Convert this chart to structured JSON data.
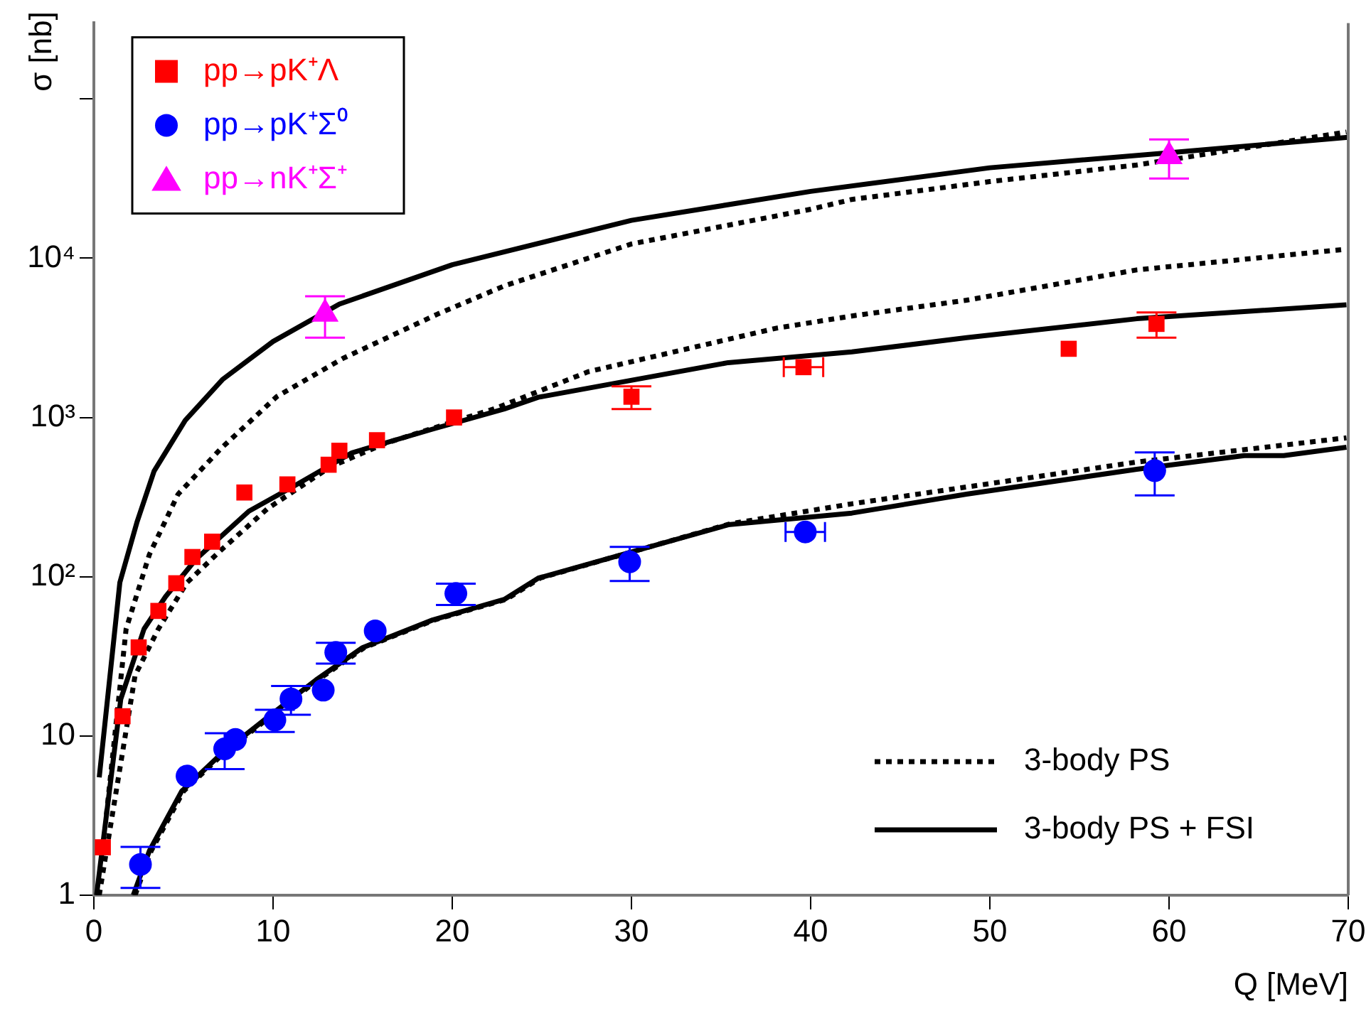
{
  "chart_data": {
    "type": "scatter",
    "xlabel": "Q [MeV]",
    "ylabel": "σ [nb]",
    "log": "y",
    "grid": false,
    "legend": "top left",
    "xlim": [
      0,
      70
    ],
    "xticks": [
      0,
      10,
      20,
      30,
      40,
      50,
      60,
      70
    ],
    "ylim": [
      1,
      300000
    ],
    "yticks": [
      1,
      10,
      {
        "value": 100,
        "label": "10²"
      },
      {
        "value": 1000,
        "label": "10³"
      },
      {
        "value": 10000,
        "label": "10⁴"
      },
      {
        "value": 100000,
        "label": null
      }
    ],
    "series": [
      {
        "name": "pp→pK⁺Λ",
        "color": "#ff0000",
        "marker": "square",
        "x": [
          0.5,
          1.6,
          2.5,
          3.6,
          4.6,
          5.5,
          6.6,
          8.4,
          10.8,
          13.1,
          13.7,
          15.8,
          20.1,
          30.0,
          39.6,
          54.4,
          59.3
        ],
        "values": [
          2.0,
          13.3,
          36,
          61,
          91,
          133,
          166,
          338,
          380,
          505,
          618,
          720,
          1000,
          1350,
          2070,
          2700,
          3870
        ],
        "errors": [
          null,
          null,
          null,
          null,
          null,
          null,
          null,
          null,
          null,
          null,
          null,
          null,
          null,
          220,
          null,
          null,
          700
        ],
        "xerrors": [
          null,
          null,
          null,
          null,
          null,
          null,
          null,
          null,
          null,
          null,
          null,
          null,
          null,
          null,
          1.1,
          null,
          null
        ]
      },
      {
        "name": "pp→pK⁺Σ⁰",
        "color": "#0000ff",
        "marker": "circle",
        "x": [
          2.6,
          5.2,
          7.3,
          7.9,
          10.1,
          11.0,
          12.8,
          13.5,
          15.7,
          20.2,
          29.9,
          39.7,
          59.2
        ],
        "values": [
          1.56,
          5.6,
          8.3,
          9.5,
          12.6,
          17.1,
          19.4,
          33.5,
          45.7,
          78.5,
          124,
          191,
          464
        ],
        "errors": [
          0.45,
          null,
          2.1,
          null,
          2,
          3.5,
          null,
          5,
          null,
          12,
          30,
          null,
          140
        ],
        "xerrors": [
          null,
          null,
          null,
          null,
          null,
          null,
          null,
          null,
          null,
          null,
          null,
          1.1,
          null
        ]
      },
      {
        "name": "pp→nK⁺Σ⁺",
        "color": "#ff00ff",
        "marker": "triangle",
        "x": [
          12.9,
          60.0
        ],
        "values": [
          4470,
          43700
        ],
        "errors": [
          1300,
          12000
        ]
      },
      {
        "type": "line",
        "name": "3-body PS",
        "color": "#000000",
        "line_style": "dotted",
        "x": [
          0.7,
          1.8,
          3.1,
          4.7,
          7.1,
          10.2,
          13.9,
          19.2,
          22.9,
          30,
          40,
          42.3,
          50,
          58.2,
          69.9
        ],
        "values": [
          3.2,
          47,
          138,
          330,
          640,
          1350,
          2350,
          4470,
          6700,
          12300,
          20300,
          23400,
          30300,
          38500,
          62000
        ]
      },
      {
        "type": "line",
        "name": "3-body PS + FSI",
        "color": "#000000",
        "line_style": "solid",
        "x": [
          0.3,
          1.45,
          2.4,
          3.36,
          5.1,
          7.2,
          10.0,
          13.7,
          20,
          30,
          40,
          50,
          60,
          70
        ],
        "values": [
          5.5,
          92,
          219,
          460,
          960,
          1740,
          3000,
          5150,
          9100,
          17300,
          26300,
          37000,
          46000,
          57500
        ]
      },
      {
        "type": "line",
        "color": "#000000",
        "line_style": "dotted",
        "x": [
          0.3,
          2.3,
          3.6,
          5.2,
          7.1,
          9.7,
          13.2,
          16.3,
          22.4,
          27.6,
          38.1,
          42.3,
          48.7,
          58.2,
          69.9
        ],
        "values": [
          1,
          24,
          47,
          92,
          147,
          268,
          490,
          690,
          1140,
          1940,
          3640,
          4340,
          5450,
          8450,
          11400
        ]
      },
      {
        "type": "line",
        "color": "#000000",
        "line_style": "solid",
        "x": [
          0.15,
          1.5,
          2.8,
          4.0,
          5.7,
          8.65,
          11.3,
          14.4,
          18.9,
          22.9,
          24.8,
          35.4,
          42.3,
          48.7,
          58.2,
          69.9
        ],
        "values": [
          1,
          17,
          47,
          75,
          129,
          258,
          378,
          600,
          845,
          1130,
          1340,
          2210,
          2580,
          3170,
          4170,
          5100
        ]
      },
      {
        "type": "line",
        "color": "#000000",
        "line_style": "dotted",
        "x": [
          2.3,
          3.2,
          5.0,
          7.2,
          9.8,
          12.5,
          15.1,
          19.0,
          23.0,
          24.9,
          35.5,
          42.3,
          58.2,
          69.9
        ],
        "values": [
          1,
          1.9,
          4.5,
          7.7,
          13.1,
          22.5,
          35.9,
          53.5,
          72,
          98,
          215,
          287,
          525,
          745
        ]
      },
      {
        "type": "line",
        "color": "#000000",
        "line_style": "solid",
        "x": [
          2.2,
          3.1,
          4.9,
          7.1,
          9.7,
          12.4,
          15.0,
          18.9,
          22.9,
          24.8,
          35.4,
          42.3,
          48.7,
          58.2,
          64.2,
          66.4,
          69.9
        ],
        "values": [
          1,
          1.9,
          4.5,
          7.7,
          13.1,
          22.5,
          35.9,
          53.5,
          72,
          98,
          212,
          251,
          330,
          473,
          576,
          576,
          650
        ]
      }
    ]
  }
}
